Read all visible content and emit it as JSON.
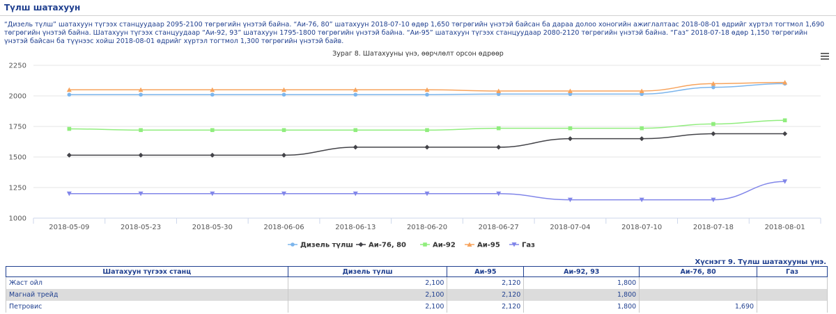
{
  "page": {
    "heading": "Түлш шатахуун",
    "paragraph": "“Дизель түлш” шатахуун түгээх станцуудаар 2095-2100 төгрөгийн үнэтэй байна. “Аи-76, 80” шатахуун 2018-07-10 өдөр 1,650 төгрөгийн үнэтэй байсан ба дараа долоо хоногийн ажиглалтаас 2018-08-01 өдрийг хүртэл тогтмол 1,690 төгрөгийн үнэтэй байна. Шатахуун түгээх станцуудаар “Аи-92, 93” шатахуун 1795-1800 төгрөгийн үнэтэй байна. “Аи-95” шатахуун түгээх станцуудаар 2080-2120 төгрөгийн үнэтэй байна. “Газ” 2018-07-18 өдөр 1,150 төгрөгийн үнэтэй байсан ба түүнээс хойш 2018-08-01 өдрийг хүртэл тогтмол 1,300 төгрөгийн үнэтэй байв.",
    "chart_caption": "Зураг 8. Шатахууны үнэ, өөрчлөлт орсон өдрөөр",
    "menu_icon": "hamburger-menu-icon"
  },
  "chart_data": {
    "type": "line",
    "title": "Зураг 8. Шатахууны үнэ, өөрчлөлт орсон өдрөөр",
    "xlabel": "",
    "ylabel": "",
    "categories": [
      "2018-05-09",
      "2018-05-23",
      "2018-05-30",
      "2018-06-06",
      "2018-06-13",
      "2018-06-20",
      "2018-06-27",
      "2018-07-04",
      "2018-07-10",
      "2018-07-18",
      "2018-08-01"
    ],
    "ylim": [
      1000,
      2250
    ],
    "yticks": [
      1000,
      1250,
      1500,
      1750,
      2000,
      2250
    ],
    "grid": true,
    "legend_position": "bottom",
    "series": [
      {
        "name": "Дизель түлш",
        "color": "#7cb5ec",
        "marker": "circle",
        "values": [
          2010,
          2010,
          2010,
          2010,
          2010,
          2010,
          2015,
          2015,
          2015,
          2070,
          2100
        ]
      },
      {
        "name": "Аи-76, 80",
        "color": "#434348",
        "marker": "diamond",
        "values": [
          1515,
          1515,
          1515,
          1515,
          1580,
          1580,
          1580,
          1650,
          1650,
          1690,
          1690
        ]
      },
      {
        "name": "Аи-92",
        "color": "#90ed7d",
        "marker": "square",
        "values": [
          1730,
          1720,
          1720,
          1720,
          1720,
          1720,
          1735,
          1735,
          1735,
          1770,
          1800
        ]
      },
      {
        "name": "Аи-95",
        "color": "#f7a35c",
        "marker": "triangle",
        "values": [
          2050,
          2050,
          2050,
          2050,
          2050,
          2050,
          2040,
          2040,
          2040,
          2100,
          2110
        ]
      },
      {
        "name": "Газ",
        "color": "#8085e9",
        "marker": "triangle-down",
        "values": [
          1200,
          1200,
          1200,
          1200,
          1200,
          1200,
          1200,
          1150,
          1150,
          1150,
          1300
        ]
      }
    ]
  },
  "table": {
    "caption": "Хүснэгт 9. Түлш шатахууны үнэ.",
    "headers": [
      "Шатахуун түгээх станц",
      "Дизель түлш",
      "Аи-95",
      "Аи-92, 93",
      "Аи-76, 80",
      "Газ"
    ],
    "rows": [
      [
        "Жаст ойл",
        "2,100",
        "2,120",
        "1,800",
        "",
        ""
      ],
      [
        "Магнай трейд",
        "2,100",
        "2,120",
        "1,800",
        "",
        ""
      ],
      [
        "Петровис",
        "2,100",
        "2,120",
        "1,800",
        "1,690",
        ""
      ]
    ]
  }
}
